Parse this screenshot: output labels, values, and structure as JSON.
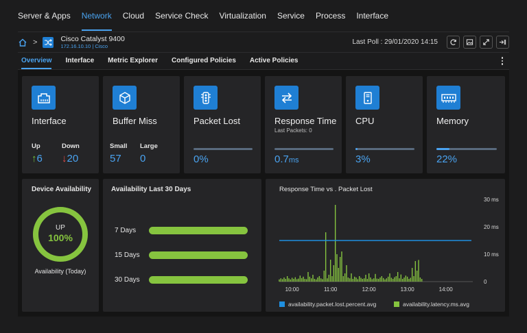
{
  "topnav": [
    "Server & Apps",
    "Network",
    "Cloud",
    "Service Check",
    "Virtualization",
    "Service",
    "Process",
    "Interface"
  ],
  "device": {
    "name": "Cisco Catalyst 9400",
    "subtitle": "172.16.10.10 | Cisco",
    "last_poll_label": "Last Poll :",
    "last_poll_value": "29/01/2020 14:15"
  },
  "subtabs": [
    "Overview",
    "Interface",
    "Metric Explorer",
    "Configured Policies",
    "Active Policies"
  ],
  "kpis": {
    "interface": {
      "title": "Interface",
      "up_label": "Up",
      "up_value": "6",
      "down_label": "Down",
      "down_value": "20",
      "up_arrow": "↑",
      "down_arrow": "↓"
    },
    "buffer": {
      "title": "Buffer Miss",
      "small_label": "Small",
      "small_value": "57",
      "large_label": "Large",
      "large_value": "0"
    },
    "packet": {
      "title": "Packet Lost",
      "value": "0%",
      "fill": 0
    },
    "response": {
      "title": "Response Time",
      "subtitle": "Last Packets: 0",
      "value": "0.7",
      "unit": "ms",
      "fill": 0
    },
    "cpu": {
      "title": "CPU",
      "value": "3%",
      "fill": 0.03
    },
    "memory": {
      "title": "Memory",
      "value": "22%",
      "fill": 0.22
    }
  },
  "availability": {
    "title": "Device Availability",
    "status": "UP",
    "percent": "100%",
    "caption": "Availability (Today)",
    "fraction": 1.0
  },
  "last30": {
    "title": "Availability Last 30 Days",
    "rows": [
      {
        "label": "7 Days",
        "percent": 100
      },
      {
        "label": "15 Days",
        "percent": 100
      },
      {
        "label": "30 Days",
        "percent": 100
      }
    ]
  },
  "colors": {
    "accent": "#4aa3f0",
    "brand": "#1f7fd4",
    "green": "#86c43f",
    "up": "#6fc23f",
    "down": "#e04b4b"
  },
  "chart_data": {
    "type": "bar",
    "title": "Response Time vs . Packet Lost",
    "x_ticks": [
      "10:00",
      "11:00",
      "12:00",
      "13:00",
      "14:00"
    ],
    "y_ticks": [
      "30 ms",
      "20 ms",
      "10 ms",
      "0"
    ],
    "ylim": [
      0,
      30
    ],
    "xlim": [
      "09:40",
      "14:40"
    ],
    "grid": false,
    "legend_position": "bottom",
    "series": [
      {
        "name": "availability.packet.lost.percent.avg",
        "type": "line",
        "color": "#1f8fe0",
        "values": [
          15
        ]
      },
      {
        "name": "availability.latency.ms.avg",
        "type": "bar",
        "color": "#86c43f",
        "x_start": "09:40",
        "interval_minutes": 2.5,
        "values": [
          0.8,
          1.2,
          0.9,
          1.5,
          1,
          2,
          1.2,
          0.8,
          1.4,
          1,
          1.6,
          0.9,
          1.1,
          2.2,
          1.3,
          1.8,
          1,
          0.9,
          3.5,
          1.8,
          1.2,
          2.5,
          1,
          0.8,
          1.5,
          2,
          1.2,
          0.9,
          4,
          18,
          1.2,
          2.5,
          8,
          2,
          6,
          28,
          10,
          5,
          9,
          11,
          2,
          3,
          6,
          1.5,
          1.2,
          3,
          1,
          1.8,
          1.5,
          0.9,
          2,
          1.4,
          1,
          1.2,
          2.5,
          1,
          3,
          1.5,
          0.9,
          1.2,
          2.8,
          1.1,
          1,
          1.5,
          2,
          1.3,
          0.8,
          1.2,
          1.8,
          3,
          1.4,
          1,
          1.6,
          2,
          3.5,
          1.2,
          2.6,
          1,
          1.5,
          2.2,
          1.8,
          1,
          1.4,
          5,
          2,
          7.5,
          4,
          7.9,
          1.5,
          1
        ]
      }
    ]
  }
}
